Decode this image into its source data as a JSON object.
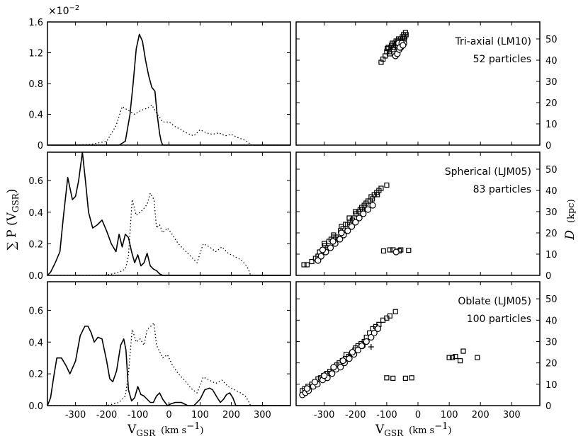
{
  "figure": {
    "xlabel": "V",
    "xlabel_sub": "GSR",
    "xunit": "(km s",
    "xunit_sup": "−1",
    "xunit_close": ")",
    "left_ylabel": "∑ P (V",
    "left_ylabel_sub": "GSR",
    "left_ylabel_close": ")",
    "right_ylabel": "D",
    "right_ylabel_unit": "(kpc)",
    "scale_note": "×10",
    "scale_note_sup": "−2"
  },
  "chart_data": [
    {
      "id": "top-left",
      "type": "line",
      "xlim": [
        -390,
        390
      ],
      "ylim": [
        0,
        1.6
      ],
      "xticks": [
        -300,
        -200,
        -100,
        0,
        100,
        200,
        300
      ],
      "yticks": [
        0,
        0.4,
        0.8,
        1.2,
        1.6
      ],
      "ytick_labels": [
        "0",
        "0.4",
        "0.8",
        "1.2",
        "1.6"
      ],
      "series": [
        {
          "name": "model (solid)",
          "style": "solid",
          "x": [
            -390,
            -160,
            -140,
            -125,
            -115,
            -105,
            -95,
            -85,
            -75,
            -65,
            -55,
            -45,
            -38,
            -30,
            -25,
            -20,
            390
          ],
          "y": [
            0,
            0,
            0.05,
            0.4,
            0.8,
            1.25,
            1.44,
            1.35,
            1.1,
            0.9,
            0.75,
            0.7,
            0.4,
            0.15,
            0.05,
            0,
            0
          ]
        },
        {
          "name": "observed (dotted)",
          "style": "dotted",
          "x": [
            -390,
            -300,
            -250,
            -200,
            -170,
            -150,
            -130,
            -110,
            -90,
            -70,
            -55,
            -40,
            -20,
            0,
            20,
            40,
            60,
            80,
            100,
            120,
            140,
            160,
            180,
            200,
            220,
            240,
            255,
            262,
            390
          ],
          "y": [
            0,
            0,
            0.01,
            0.05,
            0.25,
            0.5,
            0.45,
            0.4,
            0.45,
            0.48,
            0.52,
            0.42,
            0.3,
            0.3,
            0.24,
            0.2,
            0.15,
            0.12,
            0.2,
            0.16,
            0.14,
            0.16,
            0.12,
            0.14,
            0.1,
            0.07,
            0.04,
            0,
            0
          ]
        }
      ]
    },
    {
      "id": "mid-left",
      "type": "line",
      "xlim": [
        -390,
        390
      ],
      "ylim": [
        0,
        0.78
      ],
      "xticks": [
        -300,
        -200,
        -100,
        0,
        100,
        200,
        300
      ],
      "yticks": [
        0,
        0.2,
        0.4,
        0.6
      ],
      "ytick_labels": [
        "0.0",
        "0.2",
        "0.4",
        "0.6"
      ],
      "series": [
        {
          "name": "model (solid)",
          "style": "solid",
          "x": [
            -390,
            -380,
            -365,
            -350,
            -340,
            -325,
            -310,
            -300,
            -290,
            -278,
            -268,
            -258,
            -245,
            -230,
            -215,
            -200,
            -185,
            -170,
            -160,
            -150,
            -140,
            -130,
            -120,
            -110,
            -100,
            -90,
            -80,
            -70,
            -60,
            -50,
            -40,
            -30,
            -20,
            390
          ],
          "y": [
            0,
            0.02,
            0.08,
            0.15,
            0.35,
            0.62,
            0.48,
            0.5,
            0.6,
            0.78,
            0.6,
            0.4,
            0.3,
            0.32,
            0.35,
            0.28,
            0.2,
            0.15,
            0.26,
            0.18,
            0.26,
            0.24,
            0.15,
            0.08,
            0.13,
            0.06,
            0.08,
            0.14,
            0.06,
            0.04,
            0.03,
            0.01,
            0,
            0
          ]
        },
        {
          "name": "observed (dotted)",
          "style": "dotted",
          "x": [
            -390,
            -210,
            -180,
            -160,
            -140,
            -130,
            -118,
            -105,
            -92,
            -82,
            -70,
            -60,
            -48,
            -40,
            -30,
            -20,
            -5,
            10,
            30,
            50,
            70,
            90,
            110,
            130,
            150,
            170,
            190,
            210,
            230,
            245,
            255,
            262,
            390
          ],
          "y": [
            0,
            0,
            0.01,
            0.02,
            0.04,
            0.12,
            0.48,
            0.38,
            0.4,
            0.42,
            0.45,
            0.52,
            0.48,
            0.3,
            0.32,
            0.27,
            0.3,
            0.26,
            0.2,
            0.16,
            0.12,
            0.08,
            0.2,
            0.18,
            0.15,
            0.18,
            0.14,
            0.12,
            0.1,
            0.07,
            0.04,
            0,
            0
          ]
        }
      ]
    },
    {
      "id": "bot-left",
      "type": "line",
      "xlim": [
        -390,
        390
      ],
      "ylim": [
        0,
        0.78
      ],
      "xticks": [
        -300,
        -200,
        -100,
        0,
        100,
        200,
        300
      ],
      "xtick_labels": [
        "-300",
        "-200",
        "-100",
        "0",
        "100",
        "200",
        "300"
      ],
      "yticks": [
        0,
        0.2,
        0.4,
        0.6
      ],
      "ytick_labels": [
        "0.0",
        "0.2",
        "0.4",
        "0.6"
      ],
      "series": [
        {
          "name": "model (solid)",
          "style": "solid",
          "x": [
            -390,
            -380,
            -370,
            -360,
            -345,
            -330,
            -318,
            -300,
            -285,
            -270,
            -260,
            -250,
            -240,
            -228,
            -215,
            -200,
            -190,
            -180,
            -168,
            -155,
            -145,
            -138,
            -130,
            -120,
            -110,
            -100,
            -90,
            -80,
            -70,
            -60,
            -50,
            -40,
            -30,
            -20,
            -5,
            5,
            20,
            40,
            60,
            80,
            100,
            115,
            130,
            140,
            155,
            165,
            175,
            185,
            195,
            205,
            215,
            390
          ],
          "y": [
            0,
            0.05,
            0.18,
            0.3,
            0.3,
            0.25,
            0.2,
            0.28,
            0.44,
            0.5,
            0.5,
            0.46,
            0.4,
            0.43,
            0.42,
            0.28,
            0.17,
            0.15,
            0.22,
            0.38,
            0.42,
            0.35,
            0.1,
            0.03,
            0.05,
            0.12,
            0.07,
            0.06,
            0.04,
            0.02,
            0.02,
            0.06,
            0.08,
            0.04,
            0,
            0.01,
            0.02,
            0.02,
            0,
            0,
            0.04,
            0.1,
            0.11,
            0.1,
            0.05,
            0.02,
            0.04,
            0.07,
            0.08,
            0.05,
            0,
            0
          ]
        },
        {
          "name": "observed (dotted)",
          "style": "dotted",
          "x": [
            -390,
            -200,
            -180,
            -160,
            -140,
            -130,
            -118,
            -105,
            -92,
            -80,
            -70,
            -58,
            -48,
            -40,
            -30,
            -20,
            -5,
            10,
            30,
            50,
            70,
            90,
            110,
            130,
            150,
            170,
            190,
            210,
            230,
            245,
            255,
            262,
            390
          ],
          "y": [
            0,
            0,
            0.01,
            0.02,
            0.06,
            0.2,
            0.48,
            0.4,
            0.42,
            0.38,
            0.48,
            0.5,
            0.52,
            0.38,
            0.34,
            0.3,
            0.32,
            0.26,
            0.2,
            0.16,
            0.11,
            0.08,
            0.18,
            0.16,
            0.14,
            0.16,
            0.12,
            0.1,
            0.08,
            0.06,
            0.03,
            0,
            0
          ]
        }
      ]
    },
    {
      "id": "top-right",
      "type": "scatter",
      "xlim": [
        -390,
        390
      ],
      "ylim": [
        0,
        58
      ],
      "xticks": [
        -300,
        -200,
        -100,
        0,
        100,
        200,
        300
      ],
      "yticks": [
        0,
        10,
        20,
        30,
        40,
        50
      ],
      "ytick_labels": [
        "0",
        "10",
        "20",
        "30",
        "40",
        "50"
      ],
      "annotation": "Tri-axial (LM10)",
      "annotation2": "52 particles",
      "series": [
        {
          "name": "squares",
          "marker": "square",
          "x": [
            -118,
            -112,
            -105,
            -100,
            -98,
            -92,
            -88,
            -85,
            -80,
            -76,
            -72,
            -70,
            -66,
            -62,
            -60,
            -56,
            -52,
            -50,
            -46,
            -44,
            -42,
            -40,
            -38,
            -95,
            -90,
            -82,
            -78,
            -68,
            -64,
            -58,
            -48,
            -45
          ],
          "y": [
            39,
            40.5,
            42,
            44,
            45.5,
            44,
            46,
            47,
            45,
            48,
            47,
            49,
            48,
            50,
            47,
            50,
            49,
            51,
            52,
            50,
            51,
            53,
            52,
            46,
            43,
            48,
            46,
            47,
            49,
            48,
            50,
            48
          ]
        },
        {
          "name": "circles",
          "marker": "circle",
          "x": [
            -72,
            -66,
            -60,
            -55,
            -50,
            -45,
            -62,
            -58,
            -52,
            -48
          ],
          "y": [
            42,
            43,
            45,
            46,
            47,
            48,
            48,
            46,
            48,
            47
          ]
        }
      ]
    },
    {
      "id": "mid-right",
      "type": "scatter",
      "xlim": [
        -390,
        390
      ],
      "ylim": [
        0,
        58
      ],
      "xticks": [
        -300,
        -200,
        -100,
        0,
        100,
        200,
        300
      ],
      "yticks": [
        0,
        10,
        20,
        30,
        40,
        50
      ],
      "ytick_labels": [
        "0",
        "10",
        "20",
        "30",
        "40",
        "50"
      ],
      "annotation": "Spherical (LJM05)",
      "annotation2": "83 particles",
      "series": [
        {
          "name": "squares",
          "marker": "square",
          "x": [
            -365,
            -355,
            -340,
            -328,
            -320,
            -315,
            -305,
            -298,
            -290,
            -285,
            -278,
            -270,
            -262,
            -255,
            -248,
            -240,
            -232,
            -225,
            -218,
            -210,
            -204,
            -198,
            -190,
            -185,
            -178,
            -172,
            -166,
            -160,
            -153,
            -146,
            -140,
            -132,
            -125,
            -118,
            -110,
            -100,
            -90,
            -80,
            -60,
            -55,
            -30,
            -300,
            -270,
            -245,
            -220,
            -200,
            -180,
            -160,
            -150,
            -130
          ],
          "y": [
            5,
            5,
            6.5,
            8,
            9,
            11,
            12,
            14,
            13,
            16,
            17,
            18,
            18,
            17,
            21,
            22,
            24,
            24,
            25,
            26,
            27,
            29,
            30,
            31,
            31,
            33,
            34,
            35,
            35,
            36,
            38,
            39,
            40,
            41,
            11.5,
            42.5,
            12,
            12,
            11.5,
            12,
            11.8,
            15,
            19,
            23,
            27,
            30,
            32,
            33,
            37,
            38
          ]
        },
        {
          "name": "circles",
          "marker": "circle",
          "x": [
            -320,
            -310,
            -295,
            -280,
            -265,
            -250,
            -238,
            -225,
            -212,
            -200,
            -188,
            -175,
            -160,
            -145,
            -70,
            -305,
            -272,
            -245
          ],
          "y": [
            7,
            9,
            11,
            13,
            15,
            17,
            19,
            21,
            23,
            25,
            27,
            29,
            31,
            33,
            11,
            12,
            16,
            20
          ]
        }
      ]
    },
    {
      "id": "bot-right",
      "type": "scatter",
      "xlim": [
        -390,
        390
      ],
      "ylim": [
        0,
        58
      ],
      "xticks": [
        -300,
        -200,
        -100,
        0,
        100,
        200,
        300
      ],
      "xtick_labels": [
        "-300",
        "-200",
        "-100",
        "0",
        "100",
        "200",
        "300"
      ],
      "yticks": [
        0,
        10,
        20,
        30,
        40,
        50
      ],
      "ytick_labels": [
        "0",
        "10",
        "20",
        "30",
        "40",
        "50"
      ],
      "annotation": "Oblate (LJM05)",
      "annotation2": "100 particles",
      "series": [
        {
          "name": "squares",
          "marker": "square",
          "x": [
            -370,
            -362,
            -352,
            -340,
            -330,
            -320,
            -312,
            -302,
            -292,
            -282,
            -272,
            -262,
            -252,
            -242,
            -232,
            -222,
            -212,
            -202,
            -192,
            -182,
            -172,
            -165,
            -155,
            -145,
            -135,
            -125,
            -112,
            -100,
            -90,
            -72,
            -100,
            -80,
            -40,
            -20,
            100,
            110,
            120,
            135,
            145,
            190,
            -290,
            -260,
            -230,
            -200
          ],
          "y": [
            7,
            8,
            9,
            10,
            11,
            12.5,
            13,
            14,
            15,
            16,
            17,
            18,
            20,
            21,
            22,
            23,
            24.5,
            26,
            28,
            29,
            30,
            32,
            34,
            36,
            37,
            38,
            40,
            41,
            42,
            44,
            13,
            12.8,
            12.8,
            13,
            22.5,
            22.5,
            23,
            21,
            25.5,
            22.5,
            15,
            19,
            24,
            27
          ]
        },
        {
          "name": "circles",
          "marker": "circle",
          "x": [
            -370,
            -360,
            -350,
            -335,
            -322,
            -305,
            -290,
            -275,
            -262,
            -248,
            -235,
            -220,
            -205,
            -192,
            -178,
            -165,
            -150,
            -140,
            -128,
            -355,
            -330,
            -300,
            -270,
            -240,
            -210,
            -180
          ],
          "y": [
            5,
            6,
            7,
            9,
            10,
            12,
            13,
            15,
            17,
            18,
            20,
            22,
            24,
            26,
            28,
            30,
            32,
            34,
            36,
            8,
            11,
            14,
            18,
            21,
            25,
            28
          ]
        },
        {
          "name": "plus",
          "marker": "plus",
          "x": [
            -150
          ],
          "y": [
            27.5
          ]
        }
      ]
    }
  ]
}
